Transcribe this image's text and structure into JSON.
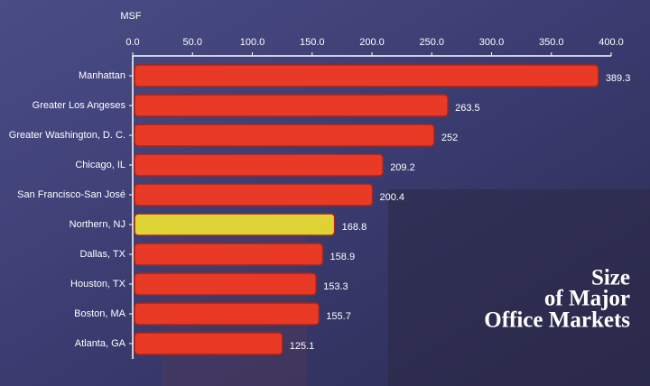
{
  "chart_data": {
    "type": "hbar",
    "title": [
      "Size",
      "of Major",
      "Office Markets"
    ],
    "x_label": "MSF",
    "categories": [
      "Manhattan",
      "Greater Los Angeses",
      "Greater Washington, D. C.",
      "Chicago, IL",
      "San Francisco-San José",
      "Northern, NJ",
      "Dallas, TX",
      "Houston, TX",
      "Boston, MA",
      "Atlanta, GA"
    ],
    "values": [
      389.3,
      263.5,
      252,
      209.2,
      200.4,
      168.8,
      158.9,
      153.3,
      155.7,
      125.1
    ],
    "colors": [
      "#f23a22",
      "#f23a22",
      "#f23a22",
      "#f23a22",
      "#f23a22",
      "#e8dc32",
      "#f23a22",
      "#f23a22",
      "#f23a22",
      "#f23a22"
    ],
    "xlim": [
      0,
      400
    ],
    "xticks": [
      {
        "value": 0,
        "label": "0.0"
      },
      {
        "value": 50,
        "label": "50.0"
      },
      {
        "value": 100,
        "label": "100.0"
      },
      {
        "value": 150,
        "label": "150.0"
      },
      {
        "value": 200,
        "label": "200.0"
      },
      {
        "value": 250,
        "label": "250.0"
      },
      {
        "value": 300,
        "label": "300.0"
      },
      {
        "value": 350,
        "label": "350.0"
      },
      {
        "value": 400,
        "label": "400.0"
      }
    ]
  }
}
